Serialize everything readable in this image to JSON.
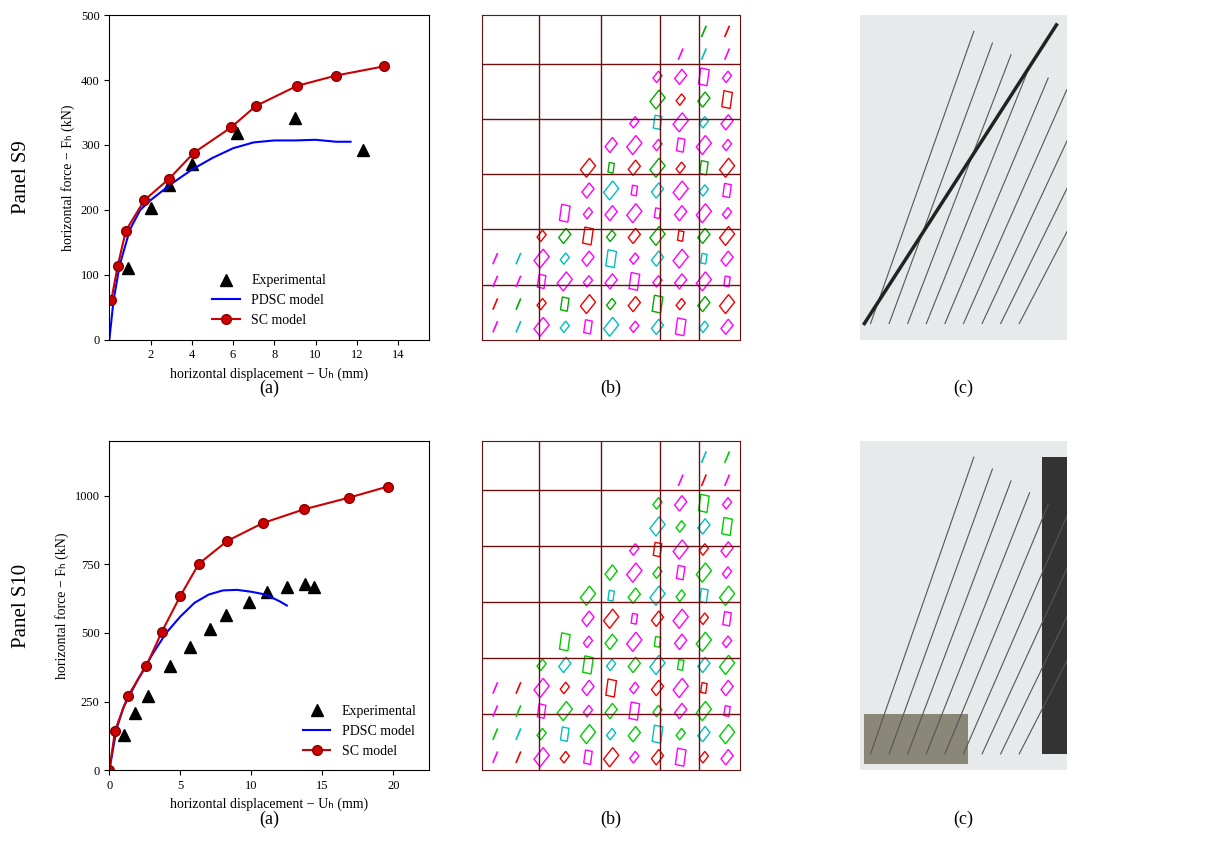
{
  "row_labels": [
    "Panel S9",
    "Panel S10"
  ],
  "captions": [
    "(a)",
    "(b)",
    "(c)"
  ],
  "chart_data": [
    {
      "type": "line",
      "xlabel": "horizontal displacement − Uₕ (mm)",
      "ylabel": "horizontal force − Fₕ (kN)",
      "xlim": [
        0,
        15.5
      ],
      "ylim": [
        0,
        500
      ],
      "xticks": [
        2,
        4,
        6,
        8,
        10,
        12,
        14
      ],
      "yticks": [
        0,
        100,
        200,
        300,
        400,
        500
      ],
      "legend": "lower center",
      "series": [
        {
          "name": "Experimental",
          "type": "scatter",
          "color": "#000000",
          "marker": "^",
          "line_style": "none",
          "x": [
            0.9,
            2.0,
            2.9,
            4.0,
            6.2,
            9.0,
            12.3
          ],
          "values": [
            110,
            203,
            238,
            270,
            318,
            342,
            292
          ]
        },
        {
          "name": "PDSC model",
          "type": "line",
          "color": "#0000ff",
          "marker": "none",
          "line_style": "solid",
          "x": [
            0,
            0.2,
            0.5,
            1,
            1.5,
            2,
            3,
            4,
            5,
            6,
            7,
            8,
            9,
            10,
            11,
            11.7
          ],
          "values": [
            0,
            60,
            115,
            170,
            200,
            215,
            240,
            262,
            280,
            295,
            304,
            307,
            307,
            308,
            305,
            305
          ]
        },
        {
          "name": "SC model",
          "type": "line",
          "color": "#cc0000",
          "marker": "o",
          "line_style": "solid",
          "x": [
            0.1,
            0.4,
            0.8,
            1.7,
            2.9,
            4.1,
            5.9,
            7.1,
            9.1,
            11.0,
            13.3
          ],
          "values": [
            62,
            113,
            168,
            215,
            248,
            288,
            327,
            360,
            391,
            407,
            421
          ]
        }
      ]
    },
    {
      "type": "line",
      "xlabel": "horizontal displacement − Uₕ (mm)",
      "ylabel": "horizontal force − Fₕ (kN)",
      "xlim": [
        0,
        22.5
      ],
      "ylim": [
        0,
        1200
      ],
      "xticks": [
        0,
        5,
        10,
        15,
        20
      ],
      "yticks": [
        0,
        250,
        500,
        750,
        1000
      ],
      "legend": "lower right",
      "series": [
        {
          "name": "Experimental",
          "type": "scatter",
          "color": "#000000",
          "marker": "^",
          "line_style": "none",
          "x": [
            0,
            1.0,
            1.8,
            2.7,
            4.3,
            5.7,
            7.1,
            8.2,
            9.8,
            11.1,
            12.5,
            13.8,
            14.4
          ],
          "values": [
            0,
            130,
            210,
            270,
            380,
            450,
            515,
            565,
            612,
            648,
            668,
            678,
            668
          ]
        },
        {
          "name": "PDSC model",
          "type": "line",
          "color": "#0000ff",
          "marker": "none",
          "line_style": "solid",
          "x": [
            0,
            0.5,
            1,
            2,
            3,
            4,
            5,
            6,
            7,
            8,
            9,
            10,
            11,
            12,
            12.5
          ],
          "values": [
            0,
            150,
            230,
            330,
            420,
            500,
            560,
            610,
            640,
            655,
            657,
            650,
            640,
            615,
            600
          ]
        },
        {
          "name": "SC model",
          "type": "line",
          "color": "#cc0000",
          "marker": "o",
          "line_style": "solid",
          "x": [
            0,
            0.4,
            1.3,
            2.6,
            3.7,
            5.0,
            6.3,
            8.3,
            10.8,
            13.7,
            16.9,
            19.6
          ],
          "values": [
            0,
            145,
            270,
            380,
            505,
            635,
            752,
            835,
            900,
            950,
            993,
            1033
          ]
        }
      ]
    }
  ]
}
